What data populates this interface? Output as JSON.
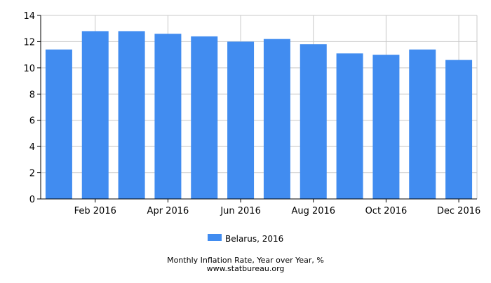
{
  "chart_data": {
    "type": "bar",
    "categories": [
      "Jan 2016",
      "Feb 2016",
      "Mar 2016",
      "Apr 2016",
      "May 2016",
      "Jun 2016",
      "Jul 2016",
      "Aug 2016",
      "Sep 2016",
      "Oct 2016",
      "Nov 2016",
      "Dec 2016"
    ],
    "x_tick_labels": [
      "",
      "Feb 2016",
      "",
      "Apr 2016",
      "",
      "Jun 2016",
      "",
      "Aug 2016",
      "",
      "Oct 2016",
      "",
      "Dec 2016"
    ],
    "series": [
      {
        "name": "Belarus, 2016",
        "color": "#418cf0",
        "values": [
          11.4,
          12.8,
          12.8,
          12.6,
          12.4,
          12.0,
          12.2,
          11.8,
          11.1,
          11.0,
          11.4,
          10.6
        ]
      }
    ],
    "ylim": [
      0,
      14
    ],
    "y_ticks": [
      0,
      2,
      4,
      6,
      8,
      10,
      12,
      14
    ],
    "grid": true,
    "legend_position": "bottom"
  },
  "caption": {
    "title": "Monthly Inflation Rate, Year over Year, %",
    "source": "www.statbureau.org"
  },
  "colors": {
    "bar": "#418cf0",
    "grid": "#c8c8c8",
    "axis": "#000000"
  }
}
